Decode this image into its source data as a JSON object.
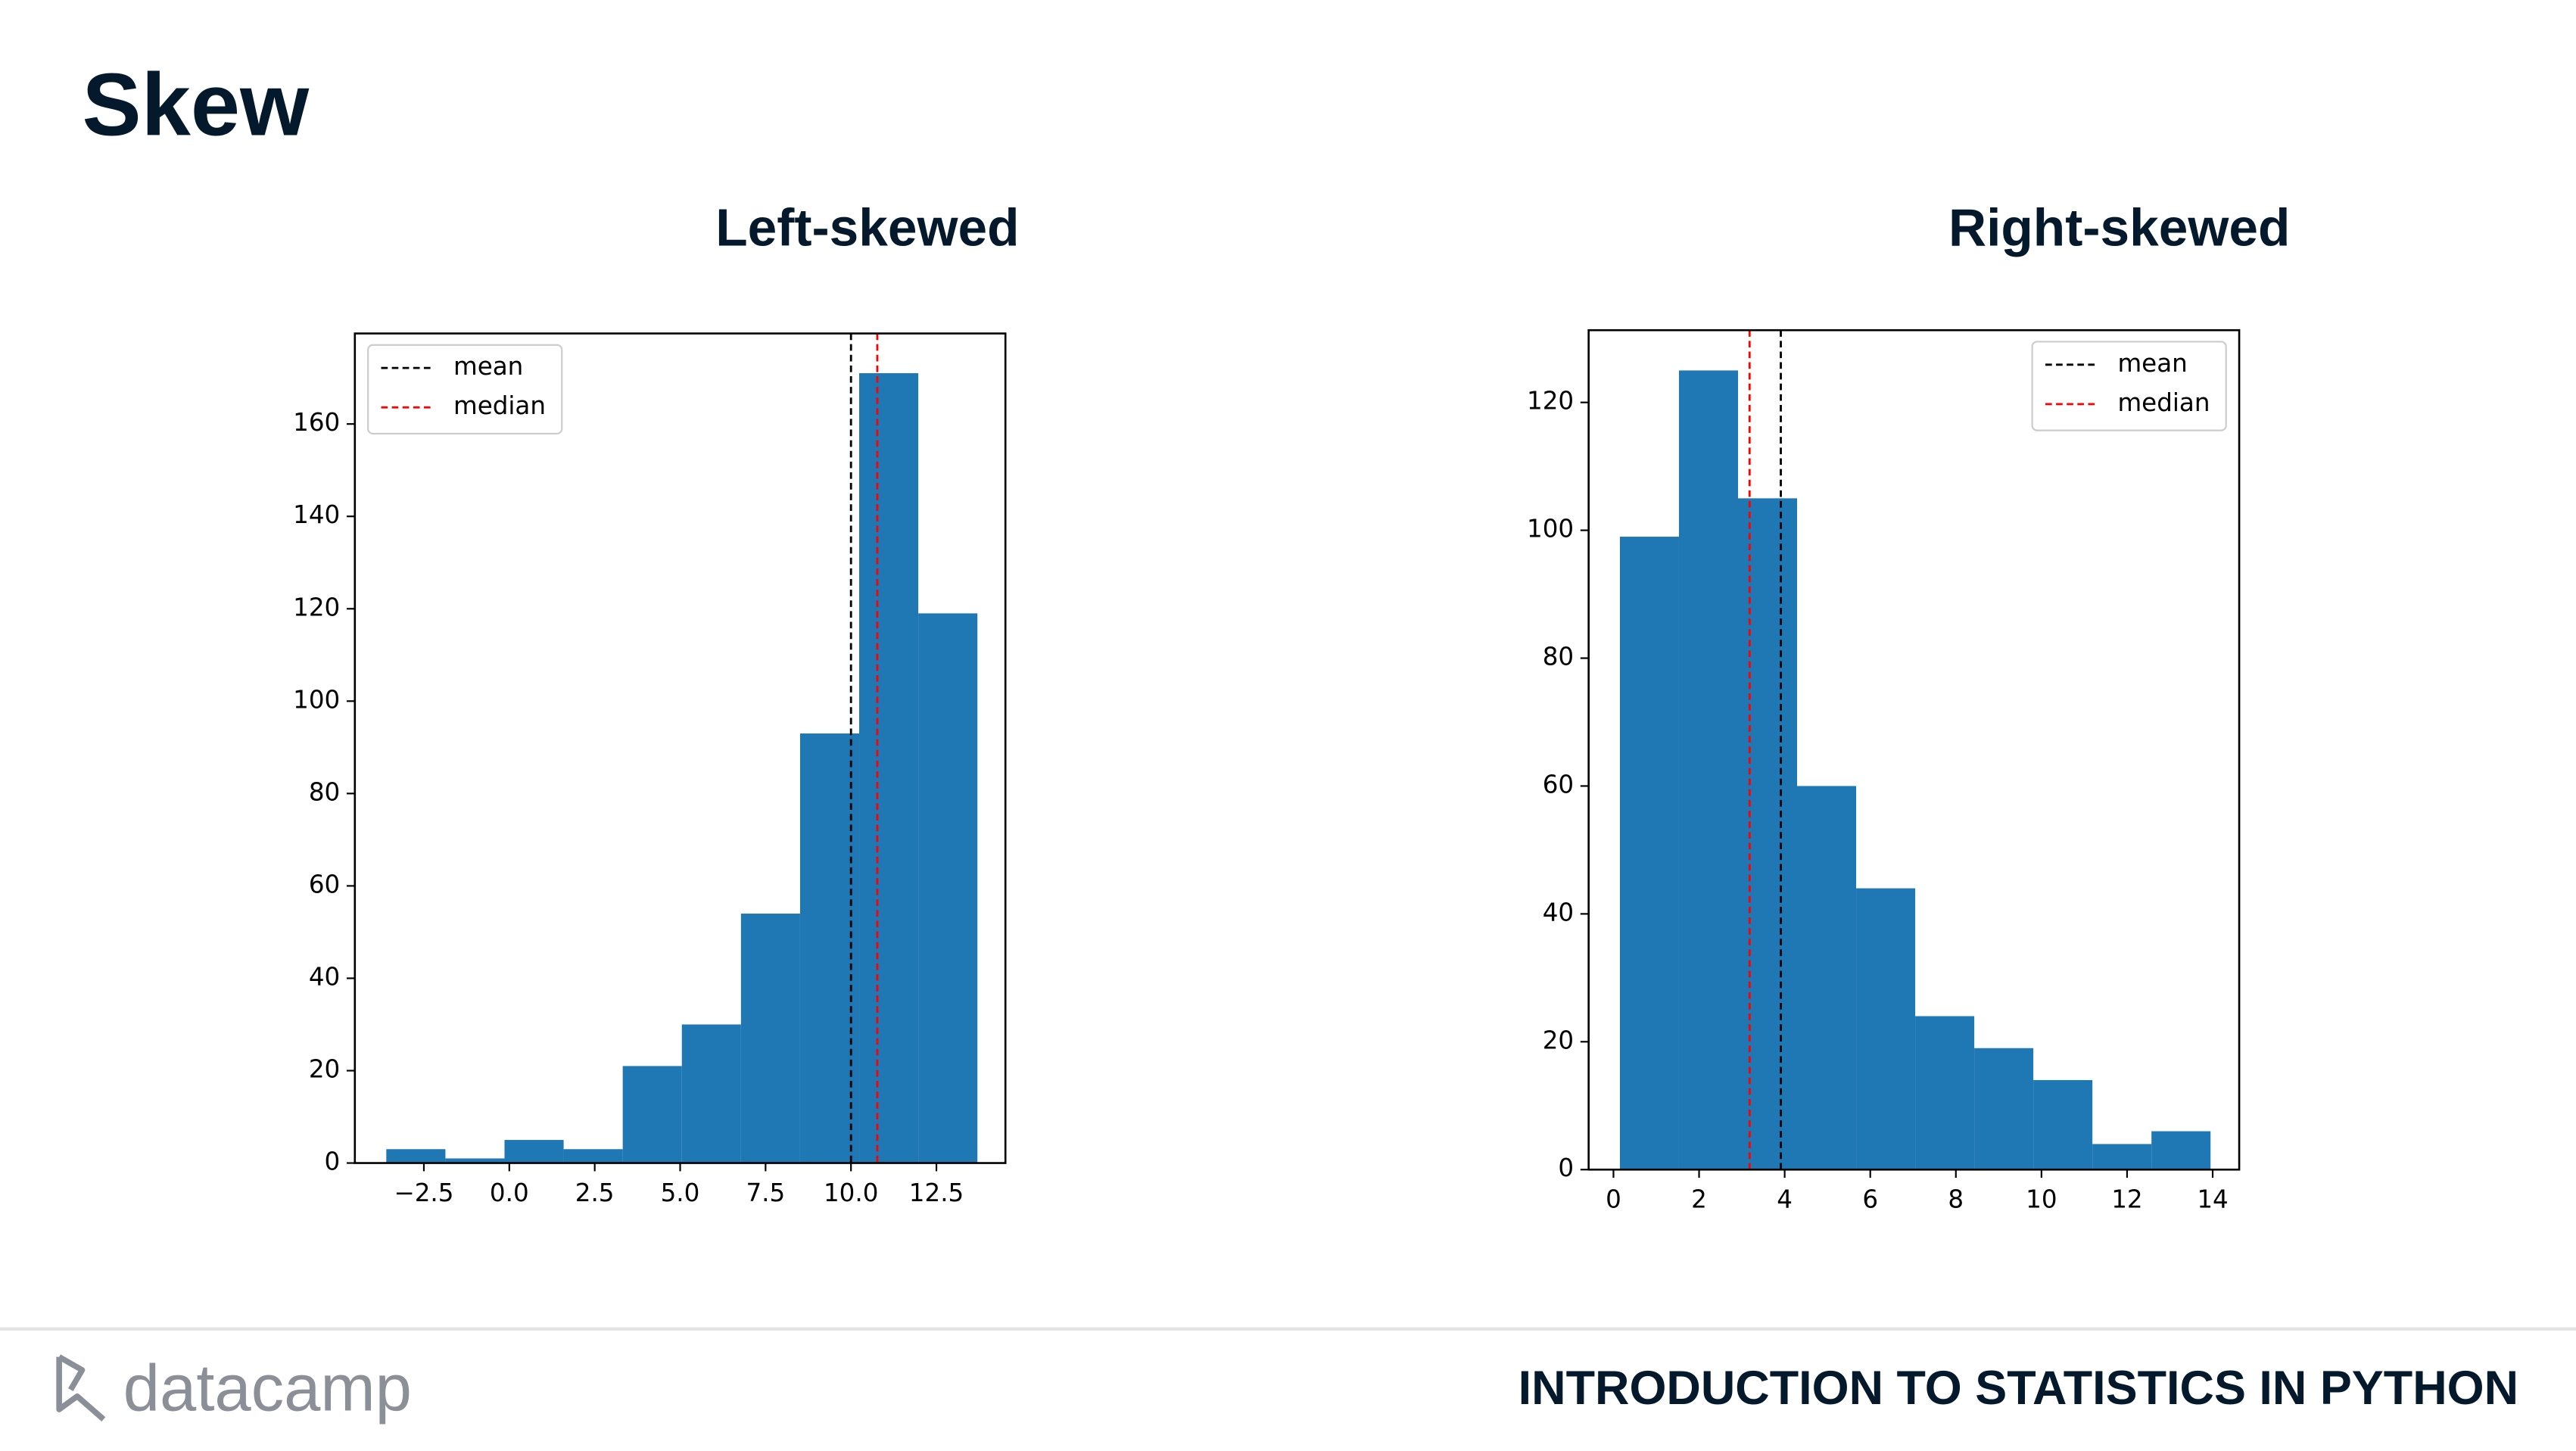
{
  "title": "Skew",
  "chart_data": [
    {
      "type": "histogram",
      "title": "Left-skewed",
      "bins": [
        -3.6,
        -1.87,
        -0.14,
        1.59,
        3.32,
        5.05,
        6.78,
        8.51,
        10.24,
        11.97,
        13.7
      ],
      "values": [
        3,
        1,
        5,
        3,
        21,
        30,
        54,
        93,
        171,
        119
      ],
      "color": "#1f77b4",
      "xlim": [
        -4.52,
        14.52
      ],
      "ylim": [
        0,
        179.6
      ],
      "xticks": [
        {
          "value": -2.5,
          "label": "−2.5"
        },
        {
          "value": 0,
          "label": "0.0"
        },
        2.5,
        {
          "value": 5,
          "label": "5.0"
        },
        7.5,
        {
          "value": 10,
          "label": "10.0"
        },
        12.5
      ],
      "yticks": [
        0,
        20,
        40,
        60,
        80,
        100,
        120,
        140,
        160
      ],
      "legend": "upper left",
      "vlines": [
        {
          "name": "mean",
          "color": "#000000",
          "value": 10.0
        },
        {
          "name": "median",
          "color": "#ff0000",
          "value": 10.77
        }
      ]
    },
    {
      "type": "histogram",
      "title": "Right-skewed",
      "bins": [
        0.15,
        1.53,
        2.91,
        4.29,
        5.67,
        7.05,
        8.43,
        9.81,
        11.19,
        12.57,
        13.95
      ],
      "values": [
        99,
        125,
        105,
        60,
        44,
        24,
        19,
        14,
        4,
        6
      ],
      "color": "#1f77b4",
      "xlim": [
        -0.58,
        14.62
      ],
      "ylim": [
        0,
        131.3
      ],
      "xticks": [
        0,
        2,
        4,
        6,
        8,
        10,
        12,
        14
      ],
      "yticks": [
        0,
        20,
        40,
        60,
        80,
        100,
        120
      ],
      "legend": "upper right",
      "vlines": [
        {
          "name": "mean",
          "color": "#000000",
          "value": 3.91
        },
        {
          "name": "median",
          "color": "#ff0000",
          "value": 3.18
        }
      ]
    }
  ],
  "footer": {
    "logo": "datacamp",
    "course": "INTRODUCTION TO STATISTICS IN PYTHON"
  }
}
